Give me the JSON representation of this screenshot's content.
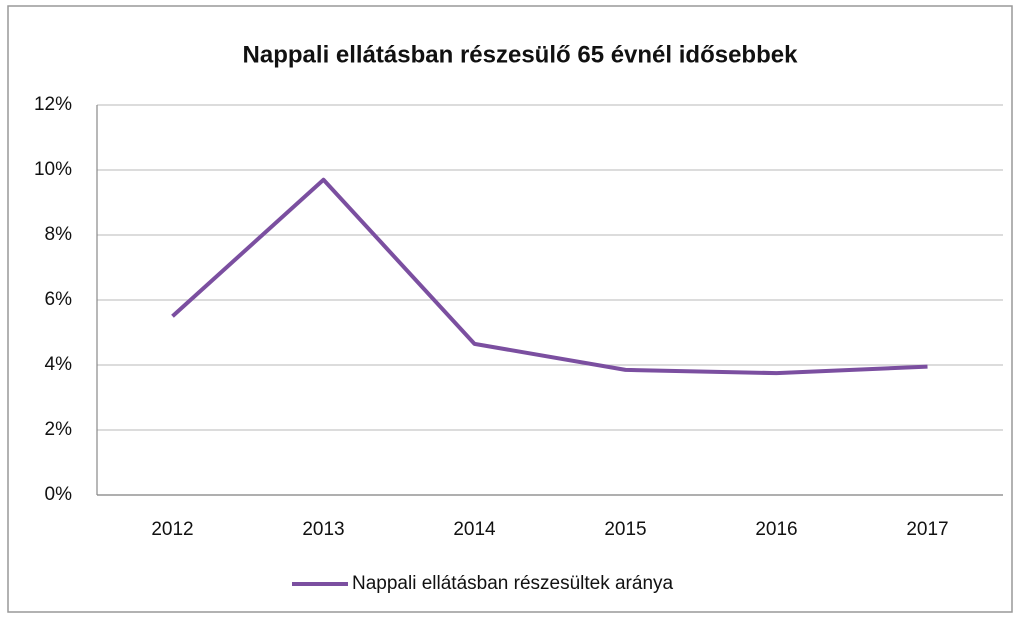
{
  "chart_data": {
    "type": "line",
    "title": "Nappali ellátásban részesülő 65 évnél idősebbek",
    "categories": [
      "2012",
      "2013",
      "2014",
      "2015",
      "2016",
      "2017"
    ],
    "series": [
      {
        "name": "Nappali ellátásban részesültek aránya",
        "color": "#7b4fa0",
        "values": [
          5.5,
          9.7,
          4.65,
          3.85,
          3.75,
          3.95
        ]
      }
    ],
    "ylim": [
      0,
      12
    ],
    "yticks": [
      {
        "value": 0,
        "label": "0%"
      },
      {
        "value": 2,
        "label": "2%"
      },
      {
        "value": 4,
        "label": "4%"
      },
      {
        "value": 6,
        "label": "6%"
      },
      {
        "value": 8,
        "label": "8%"
      },
      {
        "value": 10,
        "label": "10%"
      },
      {
        "value": 12,
        "label": "12%"
      }
    ],
    "grid": true,
    "legend": "bottom"
  }
}
